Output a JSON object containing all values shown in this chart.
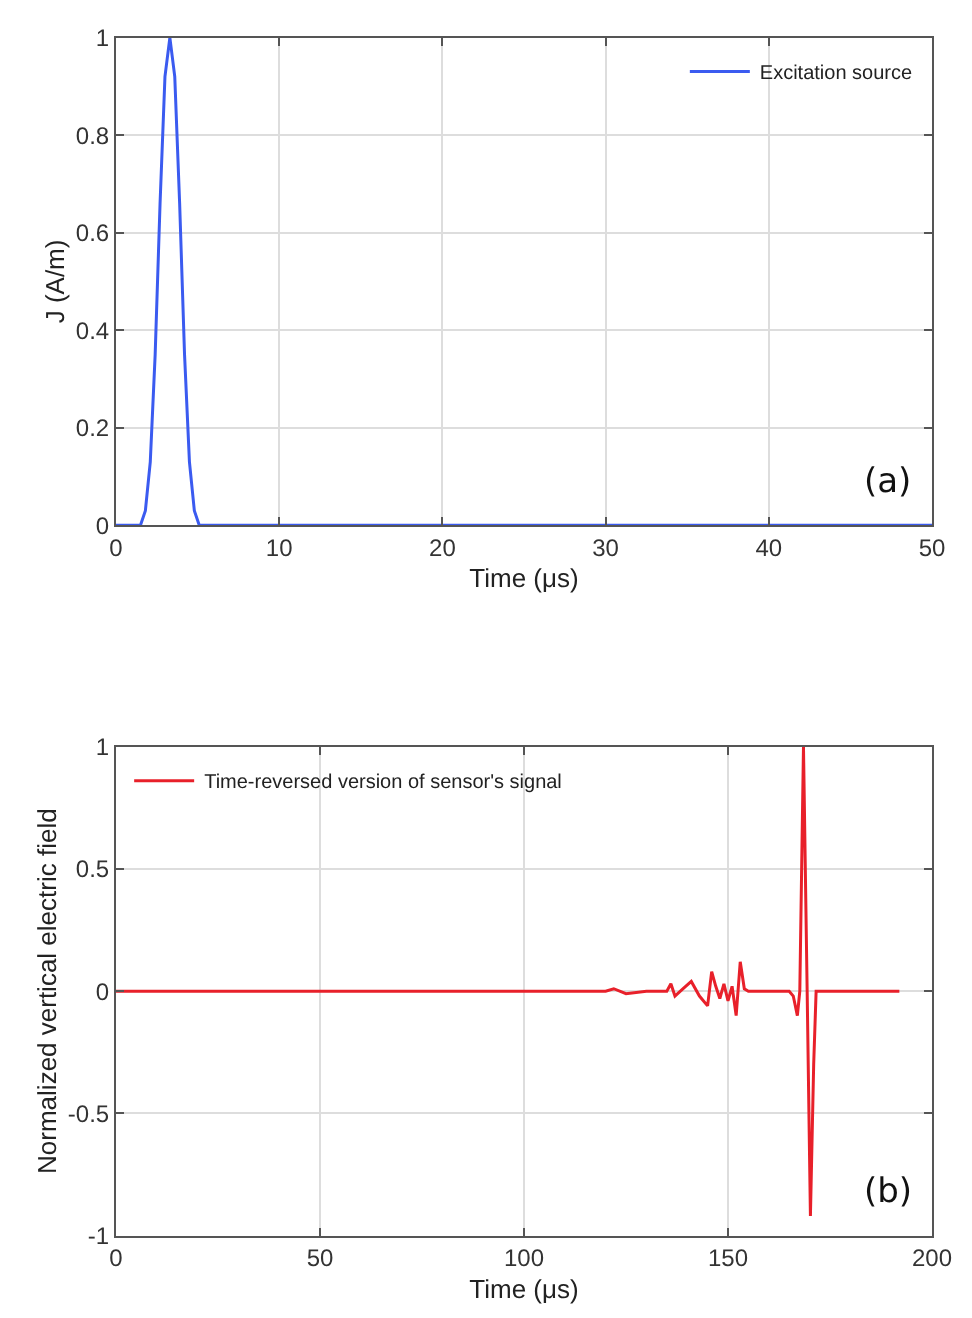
{
  "chart_data": [
    {
      "type": "line",
      "xlabel": "Time (μs)",
      "ylabel": "J (A/m)",
      "xlim": [
        0,
        50
      ],
      "ylim": [
        0,
        1
      ],
      "xticks": [
        0,
        10,
        20,
        30,
        40,
        50
      ],
      "yticks": [
        0,
        0.2,
        0.4,
        0.6,
        0.8,
        1
      ],
      "grid": true,
      "legend": "top right",
      "annotations": [
        "(a)"
      ],
      "series": [
        {
          "name": "Excitation source",
          "color": "#3b5bf0",
          "x": [
            0,
            1.5,
            1.8,
            2.1,
            2.4,
            2.7,
            3.0,
            3.3,
            3.6,
            3.9,
            4.2,
            4.5,
            4.8,
            5.1,
            50
          ],
          "values": [
            0,
            0,
            0.03,
            0.13,
            0.35,
            0.66,
            0.92,
            1,
            0.92,
            0.66,
            0.35,
            0.13,
            0.03,
            0,
            0
          ]
        }
      ]
    },
    {
      "type": "line",
      "xlabel": "Time (μs)",
      "ylabel": "Normalized vertical electric field",
      "xlim": [
        0,
        200
      ],
      "ylim": [
        -1,
        1
      ],
      "xticks": [
        0,
        50,
        100,
        150,
        200
      ],
      "yticks": [
        -1,
        -0.5,
        0,
        0.5,
        1
      ],
      "grid": true,
      "legend": "top left",
      "annotations": [
        "(b)"
      ],
      "series": [
        {
          "name": "Time-reversed version of sensor's signal",
          "color": "#e8202a",
          "x": [
            0,
            120,
            122,
            125,
            130,
            135,
            136,
            137,
            139,
            141,
            143,
            145,
            146,
            147,
            148,
            149,
            150,
            151,
            152,
            153,
            154,
            155,
            165,
            166,
            167,
            167.6,
            168.5,
            169.4,
            170.2,
            171,
            171.6,
            192
          ],
          "values": [
            0,
            0,
            0.01,
            -0.01,
            0,
            0,
            0.03,
            -0.02,
            0.01,
            0.04,
            -0.02,
            -0.06,
            0.08,
            0.02,
            -0.03,
            0.03,
            -0.04,
            0.02,
            -0.1,
            0.12,
            0.01,
            0,
            0,
            -0.02,
            -0.1,
            0,
            1,
            0,
            -0.92,
            -0.3,
            0,
            0
          ]
        }
      ]
    }
  ]
}
